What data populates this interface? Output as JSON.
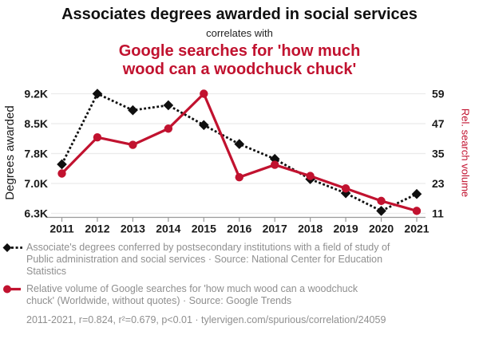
{
  "header": {
    "title": "Associates degrees awarded in social services",
    "connector": "correlates with",
    "subtitle": "Google searches for 'how much wood can a woodchuck chuck'"
  },
  "colors": {
    "accent_red": "#c1122f",
    "series_black": "#0f0f0f",
    "legend_gray": "#8f8f8f",
    "gridline": "#ebebeb",
    "axis_line": "#9a9a9a"
  },
  "chart_data": {
    "type": "line",
    "title": "Associates degrees awarded in social services",
    "subtitle": "correlates with Google searches for 'how much wood can a woodchuck chuck'",
    "x": [
      2011,
      2012,
      2013,
      2014,
      2015,
      2016,
      2017,
      2018,
      2019,
      2020,
      2021
    ],
    "x_ticks": [
      "2011",
      "2012",
      "2013",
      "2014",
      "2015",
      "2016",
      "2017",
      "2018",
      "2019",
      "2020",
      "2021"
    ],
    "grid": "horizontal",
    "legend_position": "below",
    "series": [
      {
        "name": "Associates degrees awarded in social services",
        "axis": "left",
        "color": "#0f0f0f",
        "style": "dotted",
        "marker": "diamond",
        "values": [
          7490,
          9200,
          8800,
          8920,
          8440,
          7980,
          7620,
          7130,
          6790,
          6360,
          6770
        ]
      },
      {
        "name": "Google searches for 'how much wood can a woodchuck chuck'",
        "axis": "right",
        "color": "#c1122f",
        "style": "solid",
        "marker": "circle",
        "values": [
          27,
          41.5,
          38.5,
          45,
          59,
          25.5,
          30.5,
          26,
          21,
          16,
          12
        ]
      }
    ],
    "left_axis": {
      "label": "Degrees awarded",
      "min": 6300,
      "max": 9200,
      "ticks": [
        "9.2K",
        "8.5K",
        "7.8K",
        "7.0K",
        "6.3K"
      ]
    },
    "right_axis": {
      "label": "Rel. search volume",
      "min": 11,
      "max": 59,
      "ticks": [
        "59",
        "47",
        "35",
        "23",
        "11"
      ]
    }
  },
  "legend": {
    "series1": "Associate's degrees conferred by postsecondary institutions with a field of study of Public administration and social services · Source: National Center for Education Statistics",
    "series2": "Relative volume of Google searches for 'how much wood can a woodchuck chuck' (Worldwide, without quotes) · Source: Google Trends"
  },
  "footer": "2011-2021, r=0.824, r²=0.679, p<0.01 · tylervigen.com/spurious/correlation/24059"
}
